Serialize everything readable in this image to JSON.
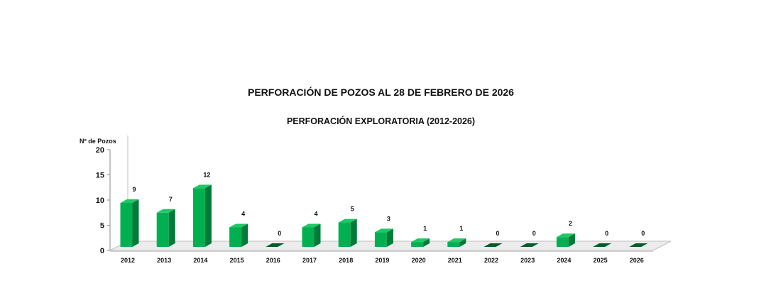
{
  "header": {
    "title": "PERFORACIÓN DE POZOS AL 28 DE FEBRERO DE 2026",
    "subtitle": "PERFORACIÓN EXPLORATORIA (2012-2026)"
  },
  "axis": {
    "ylabel": "Nº de Pozos"
  },
  "colors": {
    "bar_front": "#00B050",
    "bar_side": "#007A38",
    "bar_top": "#1FC765",
    "floor": "#d9d9d9"
  },
  "chart_data": {
    "type": "bar",
    "title": "PERFORACIÓN DE POZOS AL 28 DE FEBRERO DE 2026",
    "subtitle": "PERFORACIÓN EXPLORATORIA (2012-2026)",
    "xlabel": "",
    "ylabel": "Nº de Pozos",
    "ylim": [
      0,
      20
    ],
    "yticks": [
      0,
      5,
      10,
      15,
      20
    ],
    "categories": [
      "2012",
      "2013",
      "2014",
      "2015",
      "2016",
      "2017",
      "2018",
      "2019",
      "2020",
      "2021",
      "2022",
      "2023",
      "2024",
      "2025",
      "2026"
    ],
    "values": [
      9,
      7,
      12,
      4,
      0,
      4,
      5,
      3,
      1,
      1,
      0,
      0,
      2,
      0,
      0
    ],
    "data_labels": true,
    "grid": false,
    "legend": "none",
    "style": "3d-column"
  }
}
